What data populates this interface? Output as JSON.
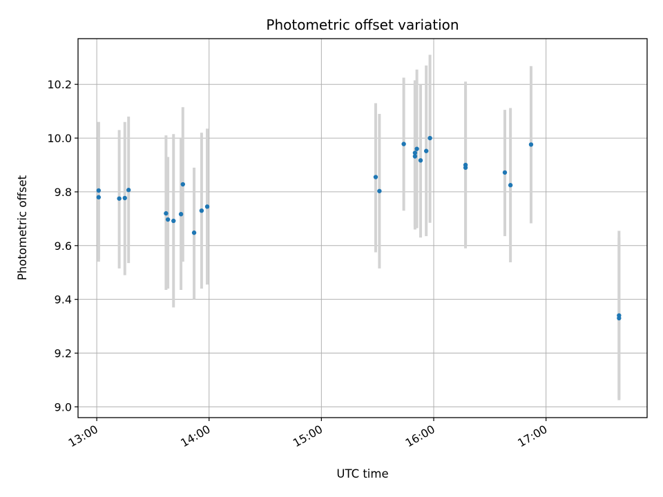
{
  "chart_data": {
    "type": "scatter",
    "title": "Photometric offset variation",
    "xlabel": "UTC time",
    "ylabel": "Photometric offset",
    "xlim": [
      "12:50",
      "17:54"
    ],
    "ylim": [
      8.96,
      10.37
    ],
    "x_ticks": [
      "13:00",
      "14:00",
      "15:00",
      "16:00",
      "17:00"
    ],
    "y_ticks": [
      9.0,
      9.2,
      9.4,
      9.6,
      9.8,
      10.0,
      10.2
    ],
    "grid": true,
    "colors": {
      "point": "#1f77b4",
      "errorbar": "#d3d3d3",
      "grid": "#b0b0b0"
    },
    "points": [
      {
        "x": "13:01",
        "y": 9.78,
        "lo": 9.55,
        "hi": 10.06
      },
      {
        "x": "13:01",
        "y": 9.805,
        "lo": 9.54,
        "hi": 10.06
      },
      {
        "x": "13:12",
        "y": 9.775,
        "lo": 9.515,
        "hi": 10.03
      },
      {
        "x": "13:15",
        "y": 9.777,
        "lo": 9.49,
        "hi": 10.06
      },
      {
        "x": "13:17",
        "y": 9.807,
        "lo": 9.535,
        "hi": 10.08
      },
      {
        "x": "13:37",
        "y": 9.72,
        "lo": 9.435,
        "hi": 10.01
      },
      {
        "x": "13:38",
        "y": 9.697,
        "lo": 9.44,
        "hi": 9.93
      },
      {
        "x": "13:41",
        "y": 9.692,
        "lo": 9.37,
        "hi": 10.015
      },
      {
        "x": "13:45",
        "y": 9.717,
        "lo": 9.435,
        "hi": 10.0
      },
      {
        "x": "13:46",
        "y": 9.828,
        "lo": 9.54,
        "hi": 10.115
      },
      {
        "x": "13:52",
        "y": 9.648,
        "lo": 9.4,
        "hi": 9.89
      },
      {
        "x": "13:56",
        "y": 9.73,
        "lo": 9.44,
        "hi": 10.02
      },
      {
        "x": "13:59",
        "y": 9.745,
        "lo": 9.455,
        "hi": 10.035
      },
      {
        "x": "15:29",
        "y": 9.855,
        "lo": 9.575,
        "hi": 10.13
      },
      {
        "x": "15:31",
        "y": 9.803,
        "lo": 9.515,
        "hi": 10.09
      },
      {
        "x": "15:44",
        "y": 9.978,
        "lo": 9.73,
        "hi": 10.225
      },
      {
        "x": "15:50",
        "y": 9.945,
        "lo": 9.67,
        "hi": 10.215
      },
      {
        "x": "15:50",
        "y": 9.932,
        "lo": 9.66,
        "hi": 10.205
      },
      {
        "x": "15:51",
        "y": 9.96,
        "lo": 9.665,
        "hi": 10.255
      },
      {
        "x": "15:53",
        "y": 9.917,
        "lo": 9.63,
        "hi": 10.2
      },
      {
        "x": "15:56",
        "y": 9.952,
        "lo": 9.635,
        "hi": 10.27
      },
      {
        "x": "15:58",
        "y": 10.0,
        "lo": 9.685,
        "hi": 10.31
      },
      {
        "x": "16:17",
        "y": 9.9,
        "lo": 9.6,
        "hi": 10.21
      },
      {
        "x": "16:17",
        "y": 9.89,
        "lo": 9.59,
        "hi": 10.18
      },
      {
        "x": "16:38",
        "y": 9.872,
        "lo": 9.635,
        "hi": 10.105
      },
      {
        "x": "16:41",
        "y": 9.825,
        "lo": 9.538,
        "hi": 10.112
      },
      {
        "x": "16:52",
        "y": 9.976,
        "lo": 9.683,
        "hi": 10.268
      },
      {
        "x": "17:39",
        "y": 9.34,
        "lo": 9.025,
        "hi": 9.655
      },
      {
        "x": "17:39",
        "y": 9.33,
        "lo": 9.03,
        "hi": 9.63
      }
    ]
  }
}
